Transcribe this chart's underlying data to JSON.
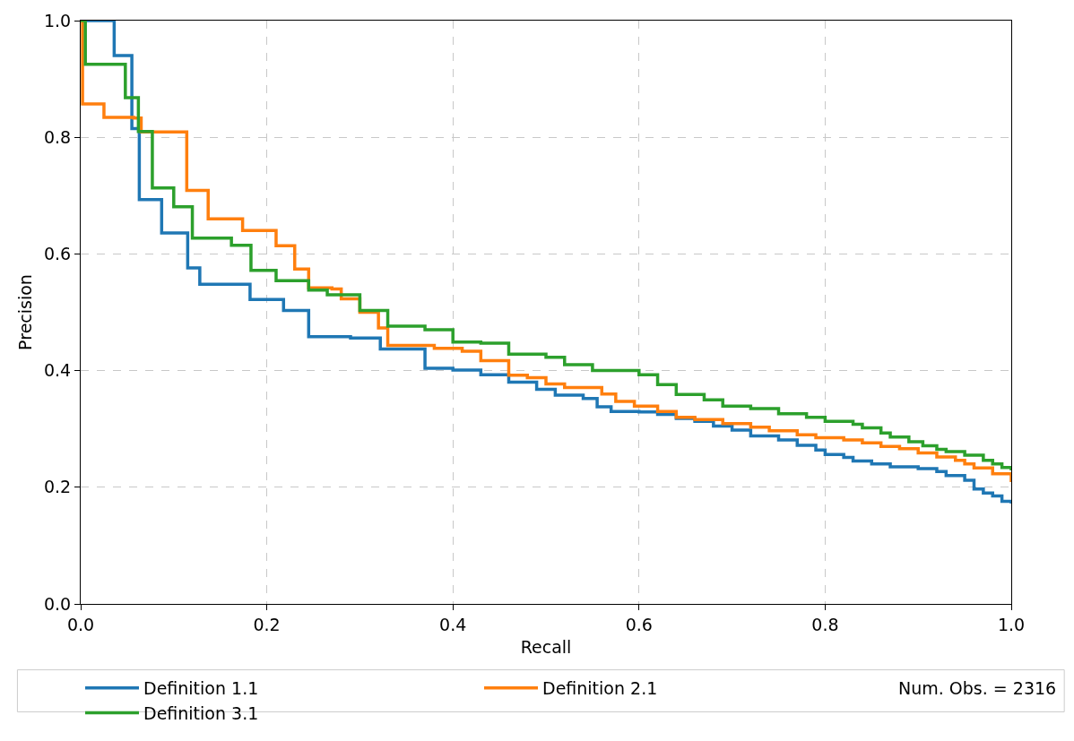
{
  "chart_data": {
    "type": "step",
    "xlabel": "Recall",
    "ylabel": "Precision",
    "xlim": [
      0,
      1
    ],
    "ylim": [
      0,
      1
    ],
    "xticks": [
      {
        "value": 0,
        "label": "0.0"
      },
      0.2,
      0.4,
      0.6,
      0.8,
      {
        "value": 1,
        "label": "1.0"
      }
    ],
    "yticks": [
      {
        "value": 0,
        "label": "0.0"
      },
      0.2,
      0.4,
      0.6,
      0.8,
      {
        "value": 1,
        "label": "1.0"
      }
    ],
    "grid": true,
    "legend": "bottom",
    "line_style": "solid",
    "marker": "none",
    "annotations": [
      "Num. Obs. = 2316"
    ],
    "series": [
      {
        "name": "Definition 1.1",
        "color": "#1f77b4",
        "x": [
          0,
          0.036,
          0.055,
          0.063,
          0.087,
          0.115,
          0.128,
          0.182,
          0.218,
          0.245,
          0.29,
          0.322,
          0.37,
          0.4,
          0.43,
          0.46,
          0.49,
          0.51,
          0.54,
          0.555,
          0.57,
          0.6,
          0.62,
          0.64,
          0.66,
          0.68,
          0.7,
          0.72,
          0.75,
          0.77,
          0.79,
          0.8,
          0.82,
          0.83,
          0.85,
          0.87,
          0.9,
          0.92,
          0.93,
          0.95,
          0.96,
          0.97,
          0.98,
          0.99,
          1.0
        ],
        "values": [
          1.0,
          0.94,
          0.815,
          0.693,
          0.636,
          0.576,
          0.548,
          0.522,
          0.503,
          0.458,
          0.456,
          0.437,
          0.404,
          0.401,
          0.393,
          0.38,
          0.368,
          0.358,
          0.352,
          0.338,
          0.33,
          0.329,
          0.325,
          0.318,
          0.313,
          0.305,
          0.298,
          0.288,
          0.281,
          0.272,
          0.264,
          0.256,
          0.251,
          0.245,
          0.24,
          0.235,
          0.232,
          0.227,
          0.22,
          0.212,
          0.197,
          0.19,
          0.185,
          0.176,
          0.172
        ]
      },
      {
        "name": "Definition 2.1",
        "color": "#ff7f0e",
        "x": [
          0,
          0.002,
          0.025,
          0.057,
          0.065,
          0.114,
          0.137,
          0.174,
          0.21,
          0.23,
          0.245,
          0.27,
          0.28,
          0.3,
          0.32,
          0.33,
          0.38,
          0.41,
          0.43,
          0.46,
          0.48,
          0.5,
          0.52,
          0.56,
          0.575,
          0.595,
          0.62,
          0.64,
          0.66,
          0.69,
          0.72,
          0.74,
          0.77,
          0.79,
          0.82,
          0.84,
          0.86,
          0.88,
          0.9,
          0.92,
          0.94,
          0.95,
          0.96,
          0.98,
          1.0
        ],
        "values": [
          1.0,
          0.857,
          0.834,
          0.833,
          0.809,
          0.709,
          0.66,
          0.64,
          0.614,
          0.574,
          0.542,
          0.54,
          0.523,
          0.5,
          0.473,
          0.443,
          0.438,
          0.433,
          0.417,
          0.392,
          0.388,
          0.377,
          0.371,
          0.36,
          0.347,
          0.339,
          0.33,
          0.32,
          0.316,
          0.309,
          0.303,
          0.297,
          0.29,
          0.285,
          0.281,
          0.276,
          0.27,
          0.266,
          0.259,
          0.252,
          0.246,
          0.24,
          0.233,
          0.223,
          0.209
        ]
      },
      {
        "name": "Definition 3.1",
        "color": "#2ca02c",
        "x": [
          0,
          0.005,
          0.048,
          0.062,
          0.077,
          0.1,
          0.12,
          0.162,
          0.183,
          0.21,
          0.245,
          0.265,
          0.3,
          0.33,
          0.37,
          0.4,
          0.43,
          0.46,
          0.5,
          0.52,
          0.55,
          0.6,
          0.62,
          0.64,
          0.67,
          0.69,
          0.72,
          0.75,
          0.78,
          0.8,
          0.83,
          0.84,
          0.86,
          0.87,
          0.89,
          0.905,
          0.92,
          0.93,
          0.95,
          0.97,
          0.98,
          0.99,
          1.0
        ],
        "values": [
          1.0,
          0.925,
          0.868,
          0.81,
          0.713,
          0.681,
          0.627,
          0.615,
          0.572,
          0.554,
          0.538,
          0.53,
          0.503,
          0.476,
          0.47,
          0.449,
          0.447,
          0.428,
          0.423,
          0.41,
          0.4,
          0.393,
          0.376,
          0.359,
          0.35,
          0.339,
          0.335,
          0.326,
          0.32,
          0.313,
          0.308,
          0.302,
          0.293,
          0.286,
          0.278,
          0.271,
          0.265,
          0.261,
          0.255,
          0.246,
          0.24,
          0.234,
          0.229
        ]
      }
    ]
  }
}
